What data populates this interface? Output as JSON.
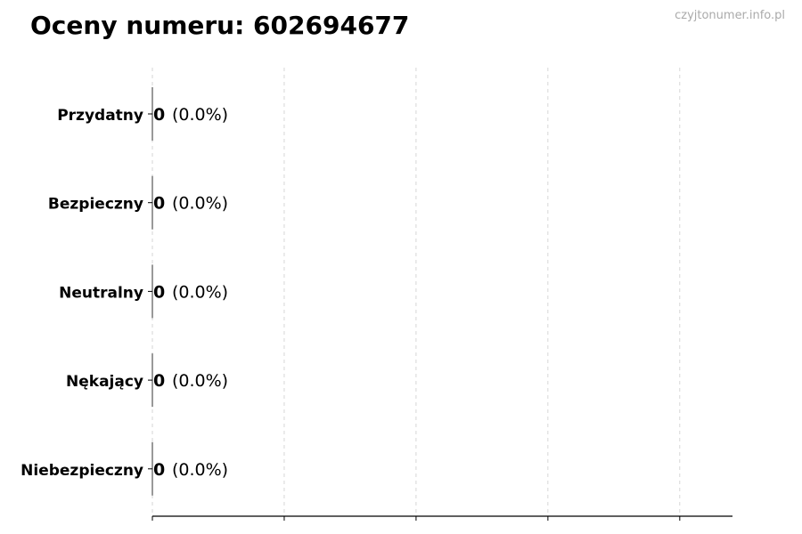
{
  "title": "Oceny numeru: 602694677",
  "watermark": "czyjtonumer.info.pl",
  "chart_data": {
    "type": "bar",
    "orientation": "horizontal",
    "title": "Oceny numeru: 602694677",
    "categories": [
      "Przydatny",
      "Bezpieczny",
      "Neutralny",
      "Nękający",
      "Niebezpieczny"
    ],
    "values": [
      0,
      0,
      0,
      0,
      0
    ],
    "data_labels": [
      "(0.0%)",
      "(0.0%)",
      "(0.0%)",
      "(0.0%)",
      "(0.0%)"
    ],
    "xlim": [
      0,
      4.4
    ],
    "x_ticks": [
      0,
      1,
      2,
      3,
      4
    ],
    "x_tick_labels_shown": false,
    "grid": "x dashed",
    "xlabel": "",
    "ylabel": ""
  }
}
